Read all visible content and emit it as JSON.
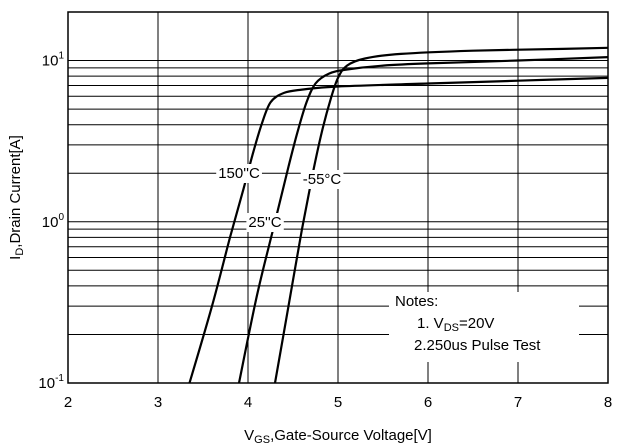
{
  "chart_data": {
    "type": "line",
    "ylabel": "I",
    "ylabel_sub": "D",
    "ylabel_rest": ",Drain Current[A]",
    "xlabel": "V",
    "xlabel_sub": "GS",
    "xlabel_rest": ",Gate-Source Voltage[V]",
    "xlim": [
      2,
      8
    ],
    "ylim": [
      0.1,
      20
    ],
    "y_scale": "log",
    "grid": true,
    "x_ticks": [
      "2",
      "3",
      "4",
      "5",
      "6",
      "7",
      "8"
    ],
    "y_ticks": [
      {
        "base": "10",
        "exp": "-1"
      },
      {
        "base": "10",
        "exp": "0"
      },
      {
        "base": "10",
        "exp": "1"
      }
    ],
    "series": [
      {
        "name": "150°C",
        "label": "150°C",
        "x": [
          3.35,
          3.6,
          3.8,
          3.95,
          4.05,
          4.15,
          4.25,
          4.4,
          4.6,
          5.0,
          6.0,
          7.0,
          8.0
        ],
        "y": [
          0.1,
          0.3,
          0.8,
          1.6,
          2.6,
          4.0,
          5.5,
          6.3,
          6.6,
          6.9,
          7.2,
          7.5,
          7.8
        ]
      },
      {
        "name": "25°C",
        "label": "25°C",
        "x": [
          3.9,
          4.1,
          4.3,
          4.45,
          4.55,
          4.65,
          4.75,
          4.9,
          5.1,
          5.5,
          6.0,
          7.0,
          8.0
        ],
        "y": [
          0.1,
          0.35,
          1.0,
          2.2,
          3.6,
          5.5,
          7.2,
          8.3,
          8.8,
          9.3,
          9.6,
          10.0,
          10.5
        ]
      },
      {
        "name": "-55°C",
        "label": "-55°C",
        "x": [
          4.3,
          4.45,
          4.6,
          4.72,
          4.82,
          4.92,
          5.0,
          5.1,
          5.3,
          5.7,
          6.5,
          7.5,
          8.0
        ],
        "y": [
          0.1,
          0.3,
          0.9,
          2.0,
          3.6,
          5.8,
          7.8,
          9.3,
          10.3,
          11.0,
          11.5,
          11.8,
          12.0
        ]
      }
    ],
    "curve_labels": [
      {
        "text": "150''C"
      },
      {
        "text": "25''C"
      },
      {
        "text": "-55°C"
      }
    ],
    "notes": {
      "title": "Notes:",
      "line1_prefix": "1. V",
      "line1_sub": "DS",
      "line1_rest": "=20V",
      "line2": "2.250us Pulse Test"
    },
    "colors": {
      "line": "#000000",
      "grid": "#000000",
      "background": "#ffffff"
    }
  }
}
